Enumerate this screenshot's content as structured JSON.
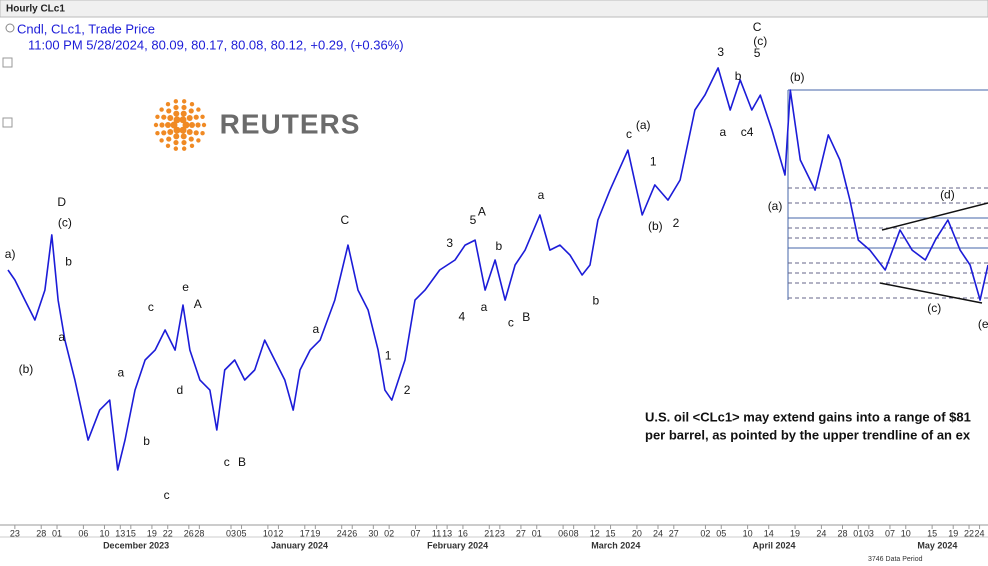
{
  "chart_data": {
    "type": "line",
    "window_title": "Hourly CLc1",
    "legend_title": "Cndl, CLc1, Trade Price",
    "legend_values": "11:00 PM 5/28/2024, 80.09, 80.17, 80.08, 80.12, +0.29, (+0.36%)",
    "logo_text": "REUTERS",
    "caption": [
      "U.S. oil <CLc1> may extend gains into a range of $81",
      "per barrel, as pointed by the upper trendline of an ex"
    ],
    "footer": "3746 Data Period",
    "xlim": [
      -1.3,
      184.6
    ],
    "ylim": [
      65.43,
      90.01
    ],
    "x": [
      -1.3,
      0,
      1.9,
      3.8,
      5.7,
      7.0,
      8.2,
      9.5,
      11.4,
      13.9,
      16.1,
      18.0,
      19.5,
      20.9,
      22.8,
      24.7,
      26.6,
      28.5,
      30.4,
      31.9,
      33.2,
      35.1,
      37.0,
      38.3,
      39.8,
      41.7,
      43.6,
      45.5,
      47.4,
      49.3,
      51.2,
      52.8,
      54.1,
      56.0,
      57.9,
      60.7,
      63.2,
      65.1,
      67.0,
      68.9,
      70.2,
      71.5,
      74.0,
      75.9,
      77.8,
      80.6,
      83.5,
      85.4,
      87.3,
      89.2,
      91.1,
      93.0,
      94.9,
      96.8,
      99.6,
      101.5,
      103.4,
      105.3,
      107.6,
      109.1,
      110.6,
      112.9,
      116.3,
      119.0,
      121.4,
      123.9,
      126.2,
      129.0,
      130.9,
      133.4,
      135.7,
      137.6,
      139.8,
      141.4,
      143.6,
      146.1,
      147.1,
      149.0,
      151.8,
      154.3,
      156.5,
      158.4,
      160.0,
      162.2,
      165.1,
      167.9,
      170.2,
      172.7,
      174.6,
      177.0,
      179.3,
      181.2,
      183.1,
      184.6
    ],
    "series": [
      {
        "name": "CLc1",
        "color": "#1c1cd8",
        "values": [
          77.72,
          77.24,
          76.27,
          75.31,
          76.75,
          79.41,
          76.27,
          74.34,
          72.42,
          69.52,
          70.97,
          71.45,
          68.08,
          69.52,
          71.93,
          73.38,
          73.86,
          74.83,
          73.86,
          76.03,
          73.86,
          72.42,
          71.93,
          70.01,
          72.9,
          73.38,
          72.42,
          72.9,
          74.34,
          73.38,
          72.42,
          70.97,
          72.9,
          73.86,
          74.34,
          76.27,
          78.92,
          76.75,
          75.79,
          73.86,
          71.93,
          71.45,
          73.38,
          76.27,
          76.75,
          77.72,
          78.2,
          78.92,
          79.16,
          76.75,
          78.2,
          76.27,
          77.96,
          78.68,
          80.37,
          78.68,
          78.92,
          78.44,
          77.48,
          77.96,
          80.13,
          81.57,
          83.5,
          80.37,
          81.82,
          81.09,
          82.06,
          85.43,
          86.15,
          87.46,
          85.43,
          86.88,
          85.43,
          86.15,
          84.47,
          82.3,
          86.39,
          83.02,
          81.57,
          84.23,
          83.02,
          81.09,
          79.16,
          78.68,
          77.72,
          79.65,
          78.68,
          78.2,
          79.16,
          80.13,
          78.68,
          77.96,
          76.27,
          77.96
        ]
      }
    ],
    "xticks": [
      {
        "value": 0,
        "label": "23"
      },
      {
        "value": 5,
        "label": "28"
      },
      {
        "value": 8,
        "label": "01"
      },
      {
        "value": 13,
        "label": "06"
      },
      {
        "value": 17,
        "label": "10"
      },
      {
        "value": 20,
        "label": "13"
      },
      {
        "value": 22,
        "label": "15"
      },
      {
        "value": 26,
        "label": "19"
      },
      {
        "value": 29,
        "label": "22"
      },
      {
        "value": 33,
        "label": "26"
      },
      {
        "value": 35,
        "label": "28"
      },
      {
        "value": 41,
        "label": "03"
      },
      {
        "value": 43,
        "label": "05"
      },
      {
        "value": 48,
        "label": "10"
      },
      {
        "value": 50,
        "label": "12"
      },
      {
        "value": 55,
        "label": "17"
      },
      {
        "value": 57,
        "label": "19"
      },
      {
        "value": 62,
        "label": "24"
      },
      {
        "value": 64,
        "label": "26"
      },
      {
        "value": 68,
        "label": "30"
      },
      {
        "value": 71,
        "label": "02"
      },
      {
        "value": 76,
        "label": "07"
      },
      {
        "value": 80,
        "label": "11"
      },
      {
        "value": 82,
        "label": "13"
      },
      {
        "value": 85,
        "label": "16"
      },
      {
        "value": 90,
        "label": "21"
      },
      {
        "value": 92,
        "label": "23"
      },
      {
        "value": 96,
        "label": "27"
      },
      {
        "value": 99,
        "label": "01"
      },
      {
        "value": 104,
        "label": "06"
      },
      {
        "value": 106,
        "label": "08"
      },
      {
        "value": 110,
        "label": "12"
      },
      {
        "value": 113,
        "label": "15"
      },
      {
        "value": 118,
        "label": "20"
      },
      {
        "value": 122,
        "label": "24"
      },
      {
        "value": 125,
        "label": "27"
      },
      {
        "value": 131,
        "label": "02"
      },
      {
        "value": 134,
        "label": "05"
      },
      {
        "value": 139,
        "label": "10"
      },
      {
        "value": 143,
        "label": "14"
      },
      {
        "value": 148,
        "label": "19"
      },
      {
        "value": 153,
        "label": "24"
      },
      {
        "value": 157,
        "label": "28"
      },
      {
        "value": 160,
        "label": "01"
      },
      {
        "value": 162,
        "label": "03"
      },
      {
        "value": 166,
        "label": "07"
      },
      {
        "value": 169,
        "label": "10"
      },
      {
        "value": 174,
        "label": "15"
      },
      {
        "value": 178,
        "label": "19"
      },
      {
        "value": 181,
        "label": "22"
      },
      {
        "value": 183,
        "label": "24"
      }
    ],
    "months": [
      {
        "value": 23,
        "label": "December 2023"
      },
      {
        "value": 54,
        "label": "January 2024"
      },
      {
        "value": 84,
        "label": "February 2024"
      },
      {
        "value": 114,
        "label": "March 2024"
      },
      {
        "value": 144,
        "label": "April 2024"
      },
      {
        "value": 175,
        "label": "May 2024"
      }
    ],
    "annotations": [
      {
        "text": "a)",
        "x": -0.9,
        "y": 78.44
      },
      {
        "text": "(b)",
        "x": 2.1,
        "y": 72.9
      },
      {
        "text": "D",
        "x": 8.9,
        "y": 80.95
      },
      {
        "text": "(c)",
        "x": 9.5,
        "y": 79.98
      },
      {
        "text": "b",
        "x": 10.2,
        "y": 78.1
      },
      {
        "text": "a",
        "x": 8.9,
        "y": 74.44
      },
      {
        "text": "a",
        "x": 20.1,
        "y": 72.75
      },
      {
        "text": "b",
        "x": 25.0,
        "y": 69.43
      },
      {
        "text": "c",
        "x": 28.8,
        "y": 66.83
      },
      {
        "text": "c",
        "x": 25.8,
        "y": 75.89
      },
      {
        "text": "d",
        "x": 31.3,
        "y": 71.89
      },
      {
        "text": "e",
        "x": 32.4,
        "y": 76.85
      },
      {
        "text": "A",
        "x": 34.7,
        "y": 76.03
      },
      {
        "text": "c",
        "x": 40.2,
        "y": 68.42
      },
      {
        "text": "B",
        "x": 43.1,
        "y": 68.42
      },
      {
        "text": "C",
        "x": 62.6,
        "y": 80.08
      },
      {
        "text": "a",
        "x": 57.1,
        "y": 74.83
      },
      {
        "text": "1",
        "x": 70.8,
        "y": 73.57
      },
      {
        "text": "2",
        "x": 74.4,
        "y": 71.89
      },
      {
        "text": "3",
        "x": 82.5,
        "y": 78.97
      },
      {
        "text": "5",
        "x": 86.9,
        "y": 80.08
      },
      {
        "text": "A",
        "x": 88.6,
        "y": 80.51
      },
      {
        "text": "4",
        "x": 84.8,
        "y": 75.45
      },
      {
        "text": "a",
        "x": 89.0,
        "y": 75.89
      },
      {
        "text": "b",
        "x": 91.8,
        "y": 78.83
      },
      {
        "text": "c",
        "x": 94.1,
        "y": 75.16
      },
      {
        "text": "B",
        "x": 97.0,
        "y": 75.41
      },
      {
        "text": "a",
        "x": 99.8,
        "y": 81.29
      },
      {
        "text": "b",
        "x": 110.2,
        "y": 76.22
      },
      {
        "text": "c",
        "x": 116.5,
        "y": 84.23
      },
      {
        "text": "(a)",
        "x": 119.2,
        "y": 84.66
      },
      {
        "text": "1",
        "x": 121.1,
        "y": 82.92
      },
      {
        "text": "(b)",
        "x": 121.5,
        "y": 79.79
      },
      {
        "text": "2",
        "x": 125.4,
        "y": 79.94
      },
      {
        "text": "3",
        "x": 133.9,
        "y": 88.18
      },
      {
        "text": "a",
        "x": 134.3,
        "y": 84.32
      },
      {
        "text": "b",
        "x": 137.2,
        "y": 87.02
      },
      {
        "text": "c4",
        "x": 138.9,
        "y": 84.32
      },
      {
        "text": "C",
        "x": 140.8,
        "y": 89.38
      },
      {
        "text": "(c)",
        "x": 141.4,
        "y": 88.71
      },
      {
        "text": "5",
        "x": 140.8,
        "y": 88.13
      },
      {
        "text": "(b)",
        "x": 148.4,
        "y": 86.98
      },
      {
        "text": "(a)",
        "x": 144.2,
        "y": 80.76
      },
      {
        "text": "(d)",
        "x": 176.9,
        "y": 81.33
      },
      {
        "text": "(c)",
        "x": 174.4,
        "y": 75.84
      },
      {
        "text": "(e",
        "x": 183.7,
        "y": 75.08
      }
    ]
  }
}
